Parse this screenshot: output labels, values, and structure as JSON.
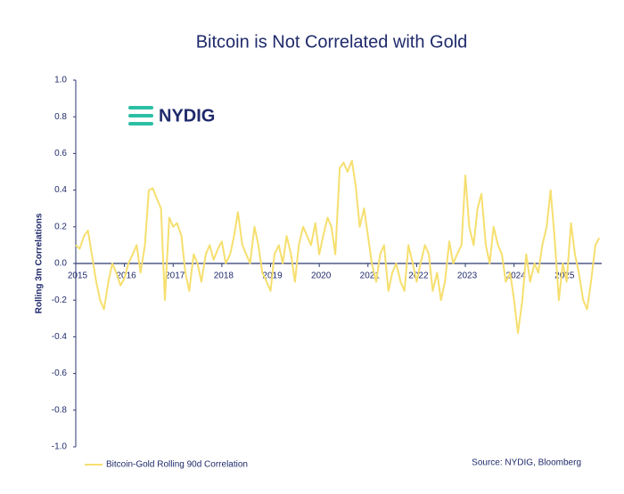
{
  "chart_data": {
    "type": "line",
    "title": "Bitcoin is Not Correlated with Gold",
    "logo": "NYDIG",
    "y_label": "Rolling 3m Correlations",
    "source": "Source: NYDIG, Bloomberg",
    "xlim": [
      2015,
      2025.8
    ],
    "xticks": [
      2015,
      2016,
      2017,
      2018,
      2019,
      2020,
      2021,
      2022,
      2023,
      2024,
      2025
    ],
    "ylim": [
      -1.0,
      1.0
    ],
    "yticks": [
      {
        "value": 1.0,
        "label": "1.0"
      },
      {
        "value": 0.8,
        "label": "0.8"
      },
      {
        "value": 0.6,
        "label": "0.6"
      },
      {
        "value": 0.4,
        "label": "0.4"
      },
      {
        "value": 0.2,
        "label": "0.2"
      },
      {
        "value": 0.0,
        "label": "0.0"
      },
      {
        "value": -0.2,
        "label": "-0.2"
      },
      {
        "value": -0.4,
        "label": "-0.4"
      },
      {
        "value": -0.6,
        "label": "-0.6"
      },
      {
        "value": -0.8,
        "label": "-0.8"
      },
      {
        "value": -1.0,
        "label": "-1.0"
      }
    ],
    "x": [
      2015.0,
      2015.08,
      2015.17,
      2015.25,
      2015.33,
      2015.42,
      2015.5,
      2015.58,
      2015.67,
      2015.75,
      2015.83,
      2015.92,
      2016.0,
      2016.08,
      2016.17,
      2016.25,
      2016.33,
      2016.42,
      2016.5,
      2016.58,
      2016.67,
      2016.75,
      2016.83,
      2016.92,
      2017.0,
      2017.08,
      2017.17,
      2017.25,
      2017.33,
      2017.42,
      2017.5,
      2017.58,
      2017.67,
      2017.75,
      2017.83,
      2017.92,
      2018.0,
      2018.08,
      2018.17,
      2018.25,
      2018.33,
      2018.42,
      2018.5,
      2018.58,
      2018.67,
      2018.75,
      2018.83,
      2018.92,
      2019.0,
      2019.08,
      2019.17,
      2019.25,
      2019.33,
      2019.42,
      2019.5,
      2019.58,
      2019.67,
      2019.75,
      2019.83,
      2019.92,
      2020.0,
      2020.08,
      2020.17,
      2020.25,
      2020.33,
      2020.42,
      2020.5,
      2020.58,
      2020.67,
      2020.75,
      2020.83,
      2020.92,
      2021.0,
      2021.08,
      2021.17,
      2021.25,
      2021.33,
      2021.42,
      2021.5,
      2021.58,
      2021.67,
      2021.75,
      2021.83,
      2021.92,
      2022.0,
      2022.08,
      2022.17,
      2022.25,
      2022.33,
      2022.42,
      2022.5,
      2022.58,
      2022.67,
      2022.75,
      2022.83,
      2022.92,
      2023.0,
      2023.08,
      2023.17,
      2023.25,
      2023.33,
      2023.42,
      2023.5,
      2023.58,
      2023.67,
      2023.75,
      2023.83,
      2023.92,
      2024.0,
      2024.08,
      2024.17,
      2024.25,
      2024.33,
      2024.42,
      2024.5,
      2024.58,
      2024.67,
      2024.75,
      2024.83,
      2024.92,
      2025.0,
      2025.08,
      2025.17,
      2025.25,
      2025.33,
      2025.42,
      2025.5,
      2025.58,
      2025.67,
      2025.75
    ],
    "series": [
      {
        "name": "Bitcoin-Gold Rolling 90d Correlation",
        "color": "#f6df6f",
        "values": [
          0.1,
          0.08,
          0.15,
          0.18,
          0.05,
          -0.1,
          -0.2,
          -0.25,
          -0.1,
          0.0,
          -0.05,
          -0.12,
          -0.08,
          0.0,
          0.05,
          0.1,
          -0.05,
          0.1,
          0.4,
          0.41,
          0.35,
          0.3,
          -0.2,
          0.25,
          0.2,
          0.22,
          0.15,
          -0.05,
          -0.15,
          0.05,
          0.0,
          -0.1,
          0.05,
          0.1,
          0.02,
          0.08,
          0.12,
          0.0,
          0.05,
          0.15,
          0.28,
          0.1,
          0.05,
          0.0,
          0.2,
          0.1,
          -0.05,
          -0.1,
          -0.15,
          0.05,
          0.1,
          0.0,
          0.15,
          0.05,
          -0.1,
          0.1,
          0.2,
          0.15,
          0.1,
          0.22,
          0.05,
          0.15,
          0.25,
          0.2,
          0.05,
          0.52,
          0.55,
          0.5,
          0.56,
          0.42,
          0.2,
          0.3,
          0.15,
          0.0,
          -0.1,
          0.05,
          0.1,
          -0.15,
          -0.05,
          0.0,
          -0.1,
          -0.15,
          0.1,
          0.0,
          -0.1,
          0.0,
          0.1,
          0.05,
          -0.15,
          -0.05,
          -0.2,
          -0.1,
          0.12,
          0.0,
          0.05,
          0.1,
          0.48,
          0.2,
          0.1,
          0.3,
          0.38,
          0.1,
          0.0,
          0.2,
          0.1,
          0.05,
          -0.1,
          -0.05,
          -0.2,
          -0.38,
          -0.2,
          0.05,
          -0.1,
          0.0,
          -0.05,
          0.1,
          0.2,
          0.4,
          0.15,
          -0.2,
          0.0,
          -0.1,
          0.22,
          0.05,
          -0.05,
          -0.2,
          -0.25,
          -0.1,
          0.1,
          0.14
        ]
      }
    ]
  }
}
